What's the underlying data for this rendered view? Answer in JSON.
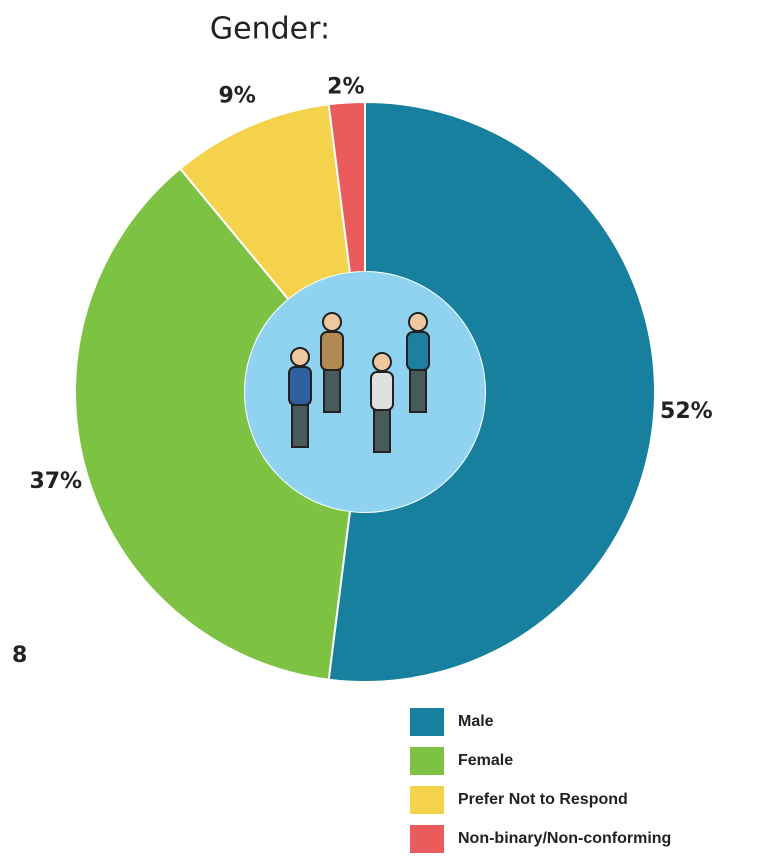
{
  "chart_data": {
    "type": "donut",
    "title": "Gender:",
    "categories": [
      "Male",
      "Female",
      "Prefer Not to Respond",
      "Non-binary/Non-conforming"
    ],
    "values": [
      52,
      37,
      9,
      2
    ],
    "value_labels": [
      "52%",
      "37%",
      "9%",
      "2%"
    ],
    "colors": [
      "#17809f",
      "#7dc243",
      "#f5d24c",
      "#eb5a5c"
    ],
    "annotations": [
      "8"
    ],
    "legend": "bottom-right"
  }
}
